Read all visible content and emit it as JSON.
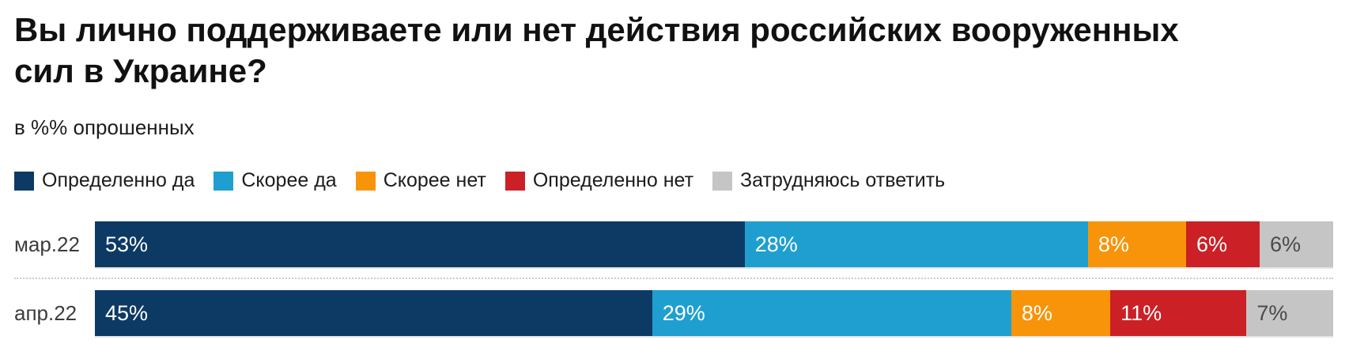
{
  "chart_data": {
    "type": "bar",
    "variant": "horizontal-stacked",
    "title": "Вы лично поддерживаете или нет действия российских вооруженных\nсил в Украине?",
    "subtitle": "в %% опрошенных",
    "value_suffix": "%",
    "legend_position": "top",
    "categories": [
      "мар.22",
      "апр.22"
    ],
    "series": [
      {
        "name": "Определенно да",
        "color": "#0d3a64",
        "text_color": "#ffffff",
        "values": [
          53,
          45
        ]
      },
      {
        "name": "Скорее да",
        "color": "#1f9fcf",
        "text_color": "#ffffff",
        "values": [
          28,
          29
        ]
      },
      {
        "name": "Скорее нет",
        "color": "#f8940a",
        "text_color": "#ffffff",
        "values": [
          8,
          8
        ]
      },
      {
        "name": "Определенно нет",
        "color": "#cb2026",
        "text_color": "#ffffff",
        "values": [
          6,
          11
        ]
      },
      {
        "name": "Затрудняюсь ответить",
        "color": "#c5c5c5",
        "text_color": "#4a4a4a",
        "values": [
          6,
          7
        ]
      }
    ]
  },
  "colors": {
    "title_text": "#111111",
    "subtitle_text": "#1c1c1c",
    "row_label_text": "#3c3c3c",
    "divider": "#cccccc",
    "background": "#ffffff"
  }
}
